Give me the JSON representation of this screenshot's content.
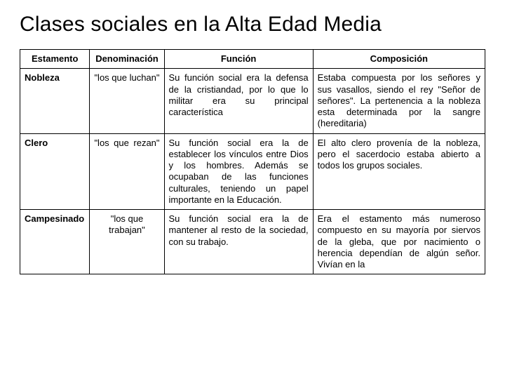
{
  "title": "Clases sociales en la Alta Edad Media",
  "table": {
    "columns": [
      "Estamento",
      "Denominación",
      "Función",
      "Composición"
    ],
    "rows": [
      {
        "estamento": "Nobleza",
        "denominacion": "\"los que luchan\"",
        "funcion": "Su función social era la defensa de la cristiandad, por lo que lo militar era su principal característica",
        "composicion": "Estaba compuesta por los señores y sus vasallos, siendo el rey \"Señor de señores\". La pertenencia a la nobleza esta determinada por la sangre (hereditaria)"
      },
      {
        "estamento": "Clero",
        "denominacion": "\"los que rezan\"",
        "funcion": "Su función social era la de establecer los vínculos entre Dios y los hombres. Además se ocupaban de las funciones culturales, teniendo un papel importante en la Educación.",
        "composicion": "El alto clero provenía de la nobleza, pero el sacerdocio estaba abierto a todos los grupos sociales."
      },
      {
        "estamento": "Campesinado",
        "denominacion": "\"los que trabajan\"",
        "funcion": "Su función social era la de mantener al resto de la sociedad, con su trabajo.",
        "composicion": "Era el estamento más numeroso compuesto en su mayoría por siervos de la gleba, que por nacimiento o herencia dependían de algún señor. Vivían en la"
      }
    ]
  },
  "style": {
    "background_color": "#ffffff",
    "border_color": "#000000",
    "text_color": "#000000",
    "title_fontsize": 30,
    "cell_fontsize": 13,
    "font_family": "Arial"
  }
}
